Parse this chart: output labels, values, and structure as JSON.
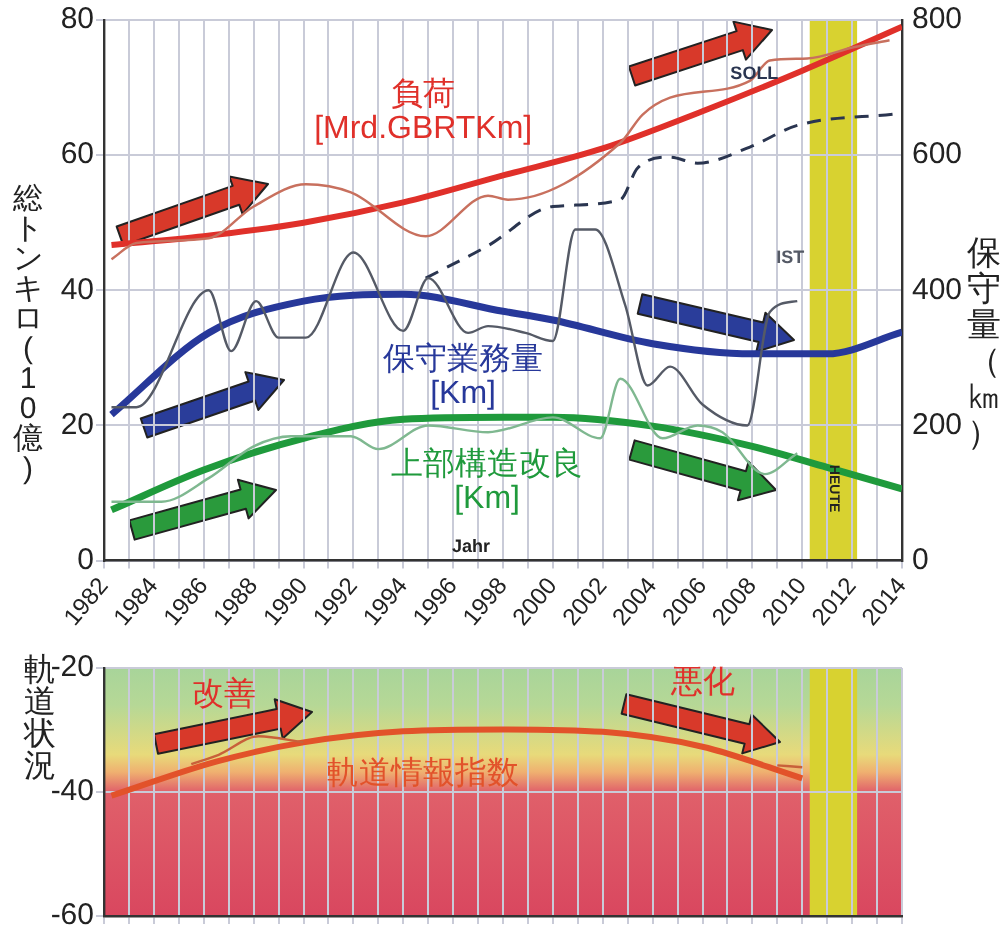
{
  "chart_data": [
    {
      "type": "line",
      "xlabel": "Jahr",
      "ylabel": "総トンキロ(10億)",
      "y2label": "保守量（㎞）",
      "marker": "none",
      "grid": true,
      "xlim": [
        1982,
        2014
      ],
      "xticks": [
        1982,
        {
          "value": 1983,
          "label": null
        },
        1984,
        {
          "value": 1985,
          "label": null
        },
        1986,
        {
          "value": 1987,
          "label": null
        },
        1988,
        {
          "value": 1989,
          "label": null
        },
        1990,
        {
          "value": 1991,
          "label": null
        },
        1992,
        {
          "value": 1993,
          "label": null
        },
        1994,
        {
          "value": 1995,
          "label": null
        },
        1996,
        {
          "value": 1997,
          "label": null
        },
        1998,
        {
          "value": 1999,
          "label": null
        },
        2000,
        {
          "value": 2001,
          "label": null
        },
        2002,
        {
          "value": 2003,
          "label": null
        },
        2004,
        {
          "value": 2005,
          "label": null
        },
        2006,
        {
          "value": 2007,
          "label": null
        },
        2008,
        {
          "value": 2009,
          "label": null
        },
        2010,
        {
          "value": 2011,
          "label": null
        },
        2012,
        {
          "value": 2013,
          "label": null
        },
        2014
      ],
      "ylim": [
        0,
        80
      ],
      "yticks": [
        0,
        20,
        40,
        60,
        80
      ],
      "y2lim": [
        0,
        800
      ],
      "y2ticks": [
        0,
        200,
        400,
        600,
        800
      ],
      "bands": [
        {
          "axis": "x",
          "from": 2010.3,
          "to": 2012.2,
          "label": "HEUTE",
          "color": "#d8d230"
        }
      ],
      "series": [
        {
          "name": "負荷\n[Mrd.GBRTKm]",
          "color": "#e0302a",
          "x": [
            1982.3,
            1986,
            1990,
            1994,
            1998,
            2002,
            2006,
            2010,
            2014
          ],
          "values": [
            46.7,
            48,
            50,
            53,
            57,
            61,
            66.5,
            72.5,
            79
          ]
        },
        {
          "color": "#c8705e",
          "x": [
            1982.3,
            1983.3,
            1986.2,
            1988,
            1990.1,
            1991.9,
            1994.9,
            1997.4,
            1998.2,
            2002.7,
            2003.6,
            2004.7,
            2007.9,
            2008.7,
            2010.2,
            2012.1,
            2013.5
          ],
          "values": [
            44.6,
            47,
            47.7,
            52.4,
            55.7,
            54.5,
            48,
            54,
            53.4,
            61.8,
            66,
            68.5,
            71,
            74,
            74.3,
            76,
            77
          ]
        },
        {
          "name": "SOLL",
          "color": "#2a3550",
          "axis": "y2",
          "line_style": "dashed",
          "x": [
            1994.9,
            1997.4,
            2000,
            2002.7,
            2003.4,
            2004.7,
            2005.8,
            2007.9,
            2009.8,
            2013.7
          ],
          "values": [
            418,
            466,
            524,
            534,
            581,
            597,
            588,
            612,
            644,
            661
          ]
        },
        {
          "name": "IST",
          "color": "#555a66",
          "axis": "y2",
          "x": [
            1982.3,
            1983.3,
            1986.2,
            1987.1,
            1988.1,
            1989,
            1990.1,
            1992,
            1994,
            1995,
            1996.6,
            1997.4,
            1998.9,
            2000,
            2000.9,
            2001.7,
            2002.9,
            2003.8,
            2004.7,
            2006,
            2007.8,
            2008.7,
            2009.8
          ],
          "values": [
            227,
            227,
            400,
            310,
            384,
            330,
            330,
            456,
            340,
            418,
            337,
            347,
            337,
            325,
            490,
            490,
            378,
            259,
            287,
            231,
            200,
            368,
            384
          ]
        },
        {
          "name": "保守業務量\n[Km]",
          "color": "#27389a",
          "axis": "y2",
          "x": [
            1982.3,
            1986.2,
            1990,
            1994,
            1998,
            2000,
            2004,
            2008,
            2011,
            2014
          ],
          "values": [
            216,
            337,
            384,
            394,
            369,
            356,
            321,
            306,
            306,
            338
          ]
        },
        {
          "name": "上部構造改良\n[Km]",
          "color": "#1f9a3c",
          "axis": "y2",
          "x": [
            1982.3,
            1986,
            1990,
            1994,
            1998,
            2000,
            2004,
            2008,
            2011,
            2014
          ],
          "values": [
            75,
            134,
            181,
            209,
            212,
            212,
            199,
            169,
            138,
            106
          ]
        },
        {
          "color": "#7fb890",
          "axis": "y2",
          "x": [
            1982.3,
            1984.3,
            1986.2,
            1988,
            1989.5,
            1991.9,
            1993,
            1995,
            1997.4,
            2000,
            2001.9,
            2002.7,
            2004.4,
            2005.8,
            2006.8,
            2008.5,
            2009.8
          ],
          "values": [
            87,
            87,
            122,
            169,
            184,
            184,
            165,
            200,
            190,
            212,
            181,
            269,
            181,
            200,
            190,
            128,
            159
          ]
        }
      ]
    },
    {
      "type": "line",
      "ylabel": "軌道状況",
      "marker": "none",
      "grid": true,
      "tick_labels": "y",
      "xlim": [
        1982,
        2014
      ],
      "xticks": [
        1982,
        1983,
        1984,
        1985,
        1986,
        1987,
        1988,
        1989,
        1990,
        1991,
        1992,
        1993,
        1994,
        1995,
        1996,
        1997,
        1998,
        1999,
        2000,
        2001,
        2002,
        2003,
        2004,
        2005,
        2006,
        2007,
        2008,
        2009,
        2010,
        2011,
        2012,
        2013,
        2014
      ],
      "ylim": [
        -60,
        -20
      ],
      "yticks": [
        -20,
        -40,
        -60
      ],
      "annotations": [
        "改善",
        "悪化"
      ],
      "bands": [
        {
          "axis": "x",
          "from": 2010.3,
          "to": 2012.2,
          "color": "#d8d230"
        }
      ],
      "series": [
        {
          "name": "軌道情報指数",
          "color": "#e2522a",
          "x": [
            1982.3,
            1986.5,
            1990,
            1994,
            1998,
            2002,
            2006,
            2010
          ],
          "values": [
            -40.6,
            -35.1,
            -32,
            -30.2,
            -29.9,
            -30.3,
            -32.7,
            -37.8
          ]
        },
        {
          "color": "#c8603a",
          "x": [
            1985.5,
            1986.6,
            1988.2,
            1990,
            1999,
            2009,
            2010
          ],
          "values": [
            -35.5,
            -34,
            -31,
            -32,
            null,
            -35.7,
            -36
          ]
        }
      ]
    }
  ]
}
